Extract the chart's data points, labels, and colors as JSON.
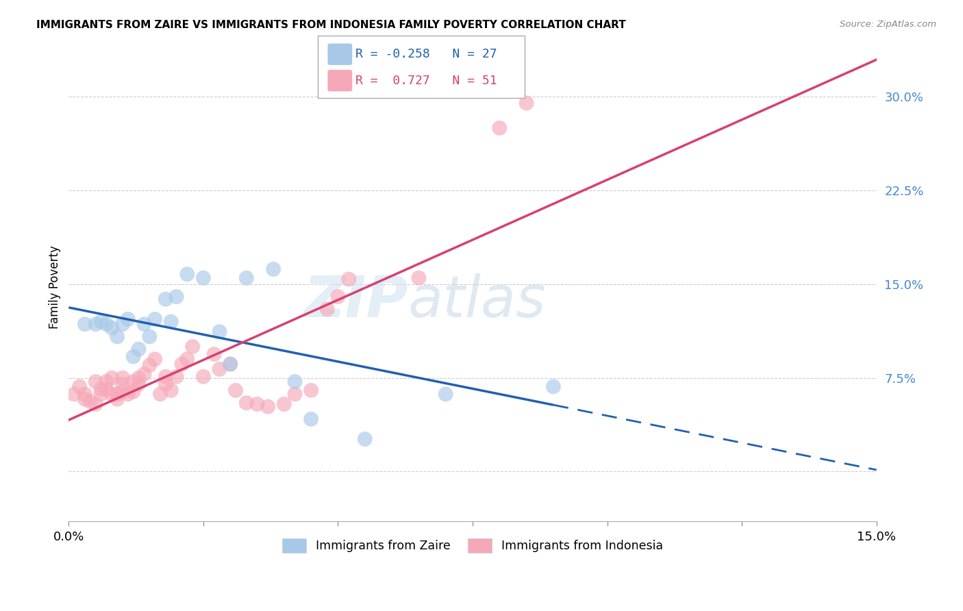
{
  "title": "IMMIGRANTS FROM ZAIRE VS IMMIGRANTS FROM INDONESIA FAMILY POVERTY CORRELATION CHART",
  "source": "Source: ZipAtlas.com",
  "ylabel": "Family Poverty",
  "xlim": [
    0.0,
    0.15
  ],
  "ylim": [
    -0.04,
    0.335
  ],
  "yticks": [
    0.0,
    0.075,
    0.15,
    0.225,
    0.3
  ],
  "ytick_labels": [
    "",
    "7.5%",
    "15.0%",
    "22.5%",
    "30.0%"
  ],
  "xticks": [
    0.0,
    0.025,
    0.05,
    0.075,
    0.1,
    0.125,
    0.15
  ],
  "xtick_labels_show": [
    "0.0%",
    "",
    "",
    "",
    "",
    "",
    "15.0%"
  ],
  "zaire_R": -0.258,
  "zaire_N": 27,
  "indonesia_R": 0.727,
  "indonesia_N": 51,
  "zaire_color": "#a8c8e8",
  "indonesia_color": "#f5a8b8",
  "zaire_line_color": "#2060b0",
  "indonesia_line_color": "#d84070",
  "legend_zaire_text_color": "#2060b0",
  "legend_indonesia_text_color": "#d84070",
  "zaire_x": [
    0.003,
    0.005,
    0.006,
    0.007,
    0.008,
    0.009,
    0.01,
    0.011,
    0.012,
    0.013,
    0.014,
    0.015,
    0.016,
    0.018,
    0.019,
    0.02,
    0.022,
    0.025,
    0.028,
    0.03,
    0.033,
    0.038,
    0.042,
    0.045,
    0.055,
    0.07,
    0.09
  ],
  "zaire_y": [
    0.118,
    0.118,
    0.12,
    0.118,
    0.115,
    0.108,
    0.118,
    0.122,
    0.092,
    0.098,
    0.118,
    0.108,
    0.122,
    0.138,
    0.12,
    0.14,
    0.158,
    0.155,
    0.112,
    0.086,
    0.155,
    0.162,
    0.072,
    0.042,
    0.026,
    0.062,
    0.068
  ],
  "indonesia_x": [
    0.001,
    0.002,
    0.003,
    0.003,
    0.004,
    0.005,
    0.005,
    0.006,
    0.006,
    0.007,
    0.007,
    0.008,
    0.008,
    0.009,
    0.009,
    0.01,
    0.01,
    0.01,
    0.011,
    0.012,
    0.012,
    0.013,
    0.013,
    0.014,
    0.015,
    0.016,
    0.017,
    0.018,
    0.018,
    0.019,
    0.02,
    0.021,
    0.022,
    0.023,
    0.025,
    0.027,
    0.028,
    0.03,
    0.031,
    0.033,
    0.035,
    0.037,
    0.04,
    0.042,
    0.045,
    0.048,
    0.05,
    0.052,
    0.065,
    0.08,
    0.085
  ],
  "indonesia_y": [
    0.062,
    0.068,
    0.062,
    0.058,
    0.056,
    0.054,
    0.072,
    0.062,
    0.066,
    0.066,
    0.072,
    0.062,
    0.075,
    0.058,
    0.062,
    0.064,
    0.07,
    0.075,
    0.062,
    0.064,
    0.072,
    0.07,
    0.075,
    0.078,
    0.085,
    0.09,
    0.062,
    0.07,
    0.076,
    0.065,
    0.076,
    0.086,
    0.09,
    0.1,
    0.076,
    0.094,
    0.082,
    0.086,
    0.065,
    0.055,
    0.054,
    0.052,
    0.054,
    0.062,
    0.065,
    0.13,
    0.14,
    0.154,
    0.155,
    0.275,
    0.295
  ],
  "zaire_line_x0": 0.0,
  "zaire_line_x1": 0.09,
  "zaire_line_x_dash_end": 0.15,
  "indonesia_line_x0": 0.0,
  "indonesia_line_x1": 0.15
}
